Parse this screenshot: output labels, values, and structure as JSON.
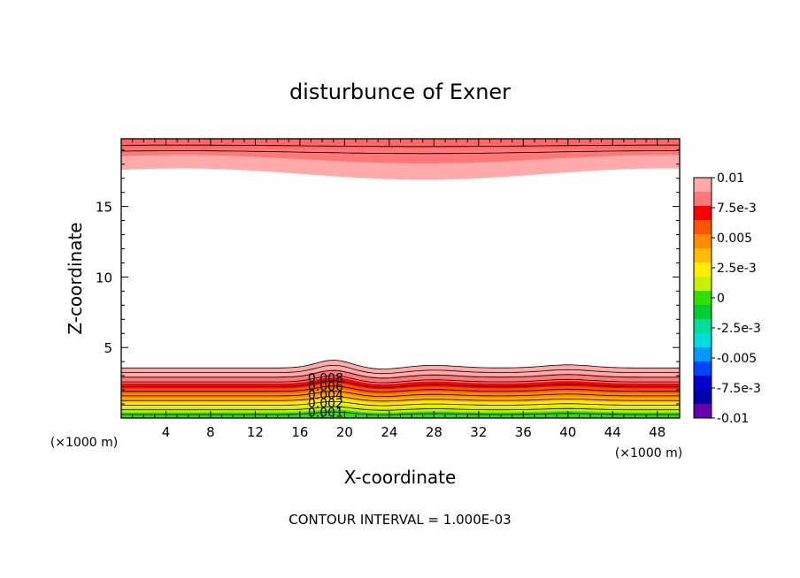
{
  "chart_data": {
    "type": "heatmap",
    "title": "disturbunce of Exner",
    "xlabel": "X-coordinate",
    "ylabel": "Z-coordinate",
    "x_unit_label_left": "(×1000 m)",
    "x_unit_label_right": "(×1000 m)",
    "footer": "CONTOUR INTERVAL = 1.000E-03",
    "xlim": [
      0,
      50
    ],
    "ylim": [
      0,
      19.8
    ],
    "x_ticks": [
      4,
      8,
      12,
      16,
      20,
      24,
      28,
      32,
      36,
      40,
      44,
      48
    ],
    "x_tick_labels": [
      "4",
      "8",
      "12",
      "16",
      "20",
      "24",
      "28",
      "32",
      "36",
      "40",
      "44",
      "48"
    ],
    "y_ticks": [
      5,
      10,
      15
    ],
    "y_tick_labels": [
      "5",
      "10",
      "15"
    ],
    "colorbar": {
      "min": -0.01,
      "max": 0.01,
      "step": 0.00125,
      "labels": [
        {
          "value": 0.01,
          "text": "0.01"
        },
        {
          "value": 0.0075,
          "text": "7.5e-3"
        },
        {
          "value": 0.005,
          "text": "0.005"
        },
        {
          "value": 0.0025,
          "text": "2.5e-3"
        },
        {
          "value": 0,
          "text": "0"
        },
        {
          "value": -0.0025,
          "text": "-2.5e-3"
        },
        {
          "value": -0.005,
          "text": "-0.005"
        },
        {
          "value": -0.0075,
          "text": "-7.5e-3"
        },
        {
          "value": -0.01,
          "text": "-0.01"
        }
      ],
      "colors": [
        "#ffaaaa",
        "#ff7777",
        "#ff0000",
        "#ff5500",
        "#ff8c00",
        "#ffbb00",
        "#ffee00",
        "#c8f000",
        "#33dd00",
        "#00cc33",
        "#00dd99",
        "#00dddd",
        "#0099ff",
        "#0044ff",
        "#0000cc",
        "#0000aa",
        "#6600aa"
      ]
    },
    "contour_labels": [
      "0.008",
      "0.006",
      "0.004",
      "0.002",
      "0.001"
    ],
    "contour_interval": 0.001,
    "bands_bottom": [
      {
        "base": 0.4,
        "color": "#33dd00"
      },
      {
        "base": 0.75,
        "color": "#c8f000"
      },
      {
        "base": 1.1,
        "color": "#ffee00"
      },
      {
        "base": 1.4,
        "color": "#ffbb00"
      },
      {
        "base": 1.75,
        "color": "#ff8c00"
      },
      {
        "base": 2.1,
        "color": "#ff5500"
      },
      {
        "base": 2.45,
        "color": "#ff0000"
      },
      {
        "base": 2.95,
        "color": "#ff7777"
      },
      {
        "base": 3.55,
        "color": "#ffaaaa"
      }
    ],
    "bands_top": [
      {
        "base": 18.85,
        "color": "#ff7777",
        "amp": 0.1
      },
      {
        "base": 18.35,
        "color": "#ff7777",
        "amp": 0.3
      },
      {
        "base": 17.3,
        "color": "#ffaaaa",
        "amp": 0.4
      }
    ],
    "bottom_background": "#00cc33"
  }
}
